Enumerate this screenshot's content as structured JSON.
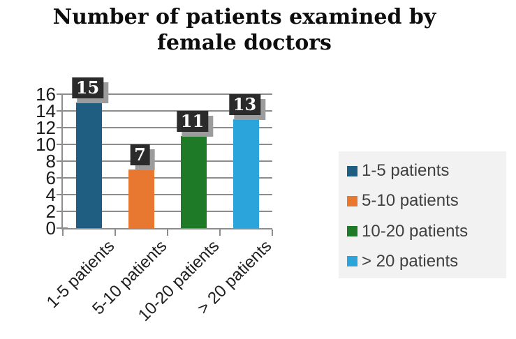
{
  "chart_data": {
    "type": "bar",
    "title": "Number of patients examined by female doctors",
    "categories": [
      "1-5 patients",
      "5-10 patients",
      "10-20 patients",
      "> 20 patients"
    ],
    "values": [
      15,
      7,
      11,
      13
    ],
    "data_labels": [
      "15",
      "7",
      "11",
      "13"
    ],
    "bar_colors": [
      "#1F5E80",
      "#E8782F",
      "#1F7A27",
      "#2BA4DC"
    ],
    "xlabel": "",
    "ylabel": "",
    "ylim": [
      0,
      16
    ],
    "y_ticks": [
      0,
      2,
      4,
      6,
      8,
      10,
      12,
      14,
      16
    ],
    "grid": true,
    "legend": {
      "position": "right",
      "entries": [
        "1-5 patients",
        "5-10 patients",
        "10-20 patients",
        "> 20 patients"
      ]
    }
  },
  "style_colors": {
    "grid": "#8C8C8C",
    "axis_text": "#1A1A1A",
    "legend_text": "#404040",
    "legend_background": "#F2F2F2",
    "data_label_background": "#2B2B2B",
    "data_label_text": "#FFFFFF",
    "data_label_shadow": "#9C9C9C"
  }
}
